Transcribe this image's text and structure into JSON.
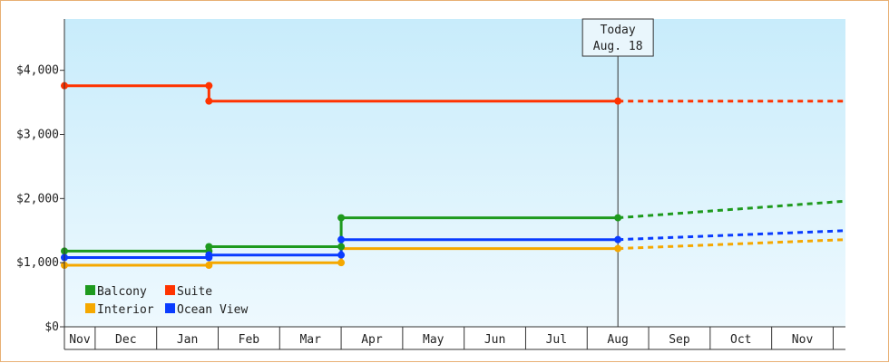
{
  "chart_data": {
    "type": "line",
    "title": "",
    "xlabel": "",
    "ylabel": "",
    "ylim": [
      0,
      4800
    ],
    "y_ticks": [
      0,
      1000,
      2000,
      3000,
      4000
    ],
    "y_tick_labels": [
      "$0",
      "$1,000",
      "$2,000",
      "$3,000",
      "$4,000"
    ],
    "x_tick_labels": [
      "Nov",
      "Dec",
      "Jan",
      "Feb",
      "Mar",
      "Apr",
      "May",
      "Jun",
      "Jul",
      "Aug",
      "Sep",
      "Oct",
      "Nov"
    ],
    "x_unit": "month index (0 = Nov)",
    "x_range": [
      0,
      12.7
    ],
    "grid": false,
    "background": [
      "#c8ecfb",
      "#eef9fe"
    ],
    "legend_position": "bottom-left",
    "today_marker": {
      "x": 9.0,
      "line1": "Today",
      "line2": "Aug. 18"
    },
    "series": [
      {
        "name": "Balcony",
        "color": "#1e9a1e",
        "points": [
          [
            0,
            1180
          ],
          [
            2.35,
            1180
          ],
          [
            2.35,
            1250
          ],
          [
            4.5,
            1250
          ],
          [
            4.5,
            1700
          ],
          [
            9.0,
            1700
          ]
        ],
        "markers": [
          [
            0,
            1180
          ],
          [
            2.35,
            1180
          ],
          [
            2.35,
            1250
          ],
          [
            4.5,
            1250
          ],
          [
            4.5,
            1700
          ],
          [
            9.0,
            1700
          ]
        ],
        "forecast": [
          [
            9.0,
            1700
          ],
          [
            12.7,
            1960
          ]
        ]
      },
      {
        "name": "Suite",
        "color": "#ff3300",
        "points": [
          [
            0,
            3760
          ],
          [
            2.35,
            3760
          ],
          [
            2.35,
            3520
          ],
          [
            9.0,
            3520
          ]
        ],
        "markers": [
          [
            0,
            3760
          ],
          [
            2.35,
            3760
          ],
          [
            2.35,
            3520
          ],
          [
            9.0,
            3520
          ]
        ],
        "forecast": [
          [
            9.0,
            3520
          ],
          [
            12.7,
            3520
          ]
        ]
      },
      {
        "name": "Interior",
        "color": "#f5a800",
        "points": [
          [
            0,
            960
          ],
          [
            2.35,
            960
          ],
          [
            2.35,
            1000
          ],
          [
            4.5,
            1000
          ],
          [
            4.5,
            1220
          ],
          [
            9.0,
            1220
          ]
        ],
        "markers": [
          [
            0,
            960
          ],
          [
            2.35,
            960
          ],
          [
            4.5,
            1000
          ],
          [
            9.0,
            1220
          ]
        ],
        "forecast": [
          [
            9.0,
            1220
          ],
          [
            12.7,
            1360
          ]
        ]
      },
      {
        "name": "Ocean View",
        "color": "#0a3cff",
        "points": [
          [
            0,
            1080
          ],
          [
            2.35,
            1080
          ],
          [
            2.35,
            1120
          ],
          [
            4.5,
            1120
          ],
          [
            4.5,
            1360
          ],
          [
            9.0,
            1360
          ]
        ],
        "markers": [
          [
            0,
            1080
          ],
          [
            2.35,
            1080
          ],
          [
            2.35,
            1120
          ],
          [
            4.5,
            1120
          ],
          [
            4.5,
            1360
          ],
          [
            9.0,
            1360
          ]
        ],
        "forecast": [
          [
            9.0,
            1360
          ],
          [
            12.7,
            1500
          ]
        ]
      }
    ]
  }
}
